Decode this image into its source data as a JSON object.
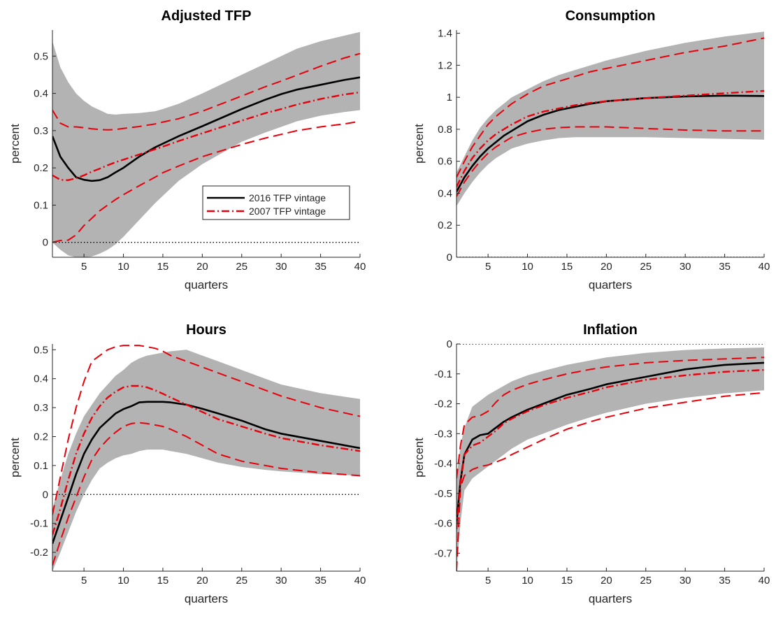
{
  "figure": {
    "legend": {
      "entries": [
        {
          "label": "2016 TFP vintage",
          "color": "#000000",
          "style": "solid"
        },
        {
          "label": "2007 TFP vintage",
          "color": "#e8000b",
          "style": "dashdot"
        }
      ]
    },
    "colors": {
      "band": "#b3b3b3",
      "median": "#000000",
      "vintage2007": "#e8000b"
    }
  },
  "chart_data": [
    {
      "type": "line",
      "title": "Adjusted TFP",
      "xlabel": "quarters",
      "ylabel": "percent",
      "xlim": [
        1,
        40
      ],
      "ylim": [
        -0.04,
        0.57
      ],
      "xticks": [
        5,
        10,
        15,
        20,
        25,
        30,
        35,
        40
      ],
      "yticks": [
        0,
        0.1,
        0.2,
        0.3,
        0.4,
        0.5
      ],
      "zero_line": true,
      "legend_position": "inside-right",
      "x": [
        1,
        2,
        3,
        4,
        5,
        6,
        7,
        8,
        9,
        10,
        12,
        14,
        15,
        17,
        20,
        25,
        28,
        30,
        32,
        35,
        38,
        40
      ],
      "band_upper": [
        0.54,
        0.47,
        0.43,
        0.4,
        0.38,
        0.365,
        0.355,
        0.345,
        0.343,
        0.345,
        0.347,
        0.352,
        0.358,
        0.372,
        0.4,
        0.45,
        0.48,
        0.5,
        0.52,
        0.54,
        0.555,
        0.565
      ],
      "band_lower": [
        0.0,
        -0.02,
        -0.035,
        -0.04,
        -0.04,
        -0.038,
        -0.03,
        -0.02,
        -0.005,
        0.015,
        0.06,
        0.105,
        0.125,
        0.165,
        0.21,
        0.27,
        0.295,
        0.31,
        0.325,
        0.34,
        0.35,
        0.355
      ],
      "series": [
        {
          "name": "2016 TFP vintage",
          "role": "median",
          "values": [
            0.285,
            0.23,
            0.2,
            0.175,
            0.168,
            0.165,
            0.167,
            0.175,
            0.188,
            0.2,
            0.23,
            0.255,
            0.265,
            0.285,
            0.312,
            0.358,
            0.383,
            0.398,
            0.41,
            0.423,
            0.436,
            0.443
          ]
        },
        {
          "name": "2007 TFP vintage",
          "role": "median",
          "values": [
            0.18,
            0.168,
            0.167,
            0.172,
            0.18,
            0.19,
            0.198,
            0.207,
            0.215,
            0.222,
            0.236,
            0.25,
            0.257,
            0.272,
            0.293,
            0.327,
            0.347,
            0.358,
            0.37,
            0.385,
            0.397,
            0.403
          ]
        },
        {
          "role": "upper",
          "values": [
            0.355,
            0.32,
            0.31,
            0.31,
            0.308,
            0.305,
            0.303,
            0.302,
            0.303,
            0.306,
            0.311,
            0.318,
            0.323,
            0.332,
            0.352,
            0.393,
            0.418,
            0.433,
            0.449,
            0.473,
            0.495,
            0.507
          ]
        },
        {
          "role": "lower",
          "values": [
            0.0,
            0.005,
            0.006,
            0.02,
            0.045,
            0.065,
            0.085,
            0.1,
            0.115,
            0.128,
            0.152,
            0.175,
            0.187,
            0.205,
            0.23,
            0.263,
            0.28,
            0.29,
            0.3,
            0.31,
            0.318,
            0.325
          ]
        }
      ]
    },
    {
      "type": "line",
      "title": "Consumption",
      "xlabel": "quarters",
      "ylabel": "percent",
      "xlim": [
        1,
        40
      ],
      "ylim": [
        0,
        1.42
      ],
      "xticks": [
        5,
        10,
        15,
        20,
        25,
        30,
        35,
        40
      ],
      "yticks": [
        0,
        0.2,
        0.4,
        0.6,
        0.8,
        1,
        1.2,
        1.4
      ],
      "zero_line": true,
      "x": [
        1,
        2,
        3,
        4,
        5,
        6,
        7,
        8,
        10,
        12,
        14,
        16,
        18,
        20,
        25,
        30,
        35,
        40
      ],
      "band_upper": [
        0.53,
        0.63,
        0.73,
        0.81,
        0.87,
        0.92,
        0.96,
        1.0,
        1.05,
        1.1,
        1.14,
        1.17,
        1.2,
        1.23,
        1.29,
        1.34,
        1.38,
        1.41
      ],
      "band_lower": [
        0.32,
        0.4,
        0.47,
        0.53,
        0.58,
        0.62,
        0.65,
        0.68,
        0.71,
        0.73,
        0.745,
        0.75,
        0.75,
        0.75,
        0.75,
        0.745,
        0.74,
        0.735
      ],
      "series": [
        {
          "name": "2016 TFP vintage",
          "role": "median",
          "values": [
            0.41,
            0.5,
            0.57,
            0.63,
            0.68,
            0.72,
            0.76,
            0.79,
            0.85,
            0.89,
            0.92,
            0.94,
            0.96,
            0.975,
            0.995,
            1.005,
            1.01,
            1.008
          ]
        },
        {
          "name": "2007 TFP vintage",
          "role": "median",
          "values": [
            0.44,
            0.54,
            0.62,
            0.68,
            0.73,
            0.77,
            0.8,
            0.83,
            0.88,
            0.91,
            0.93,
            0.95,
            0.965,
            0.975,
            0.995,
            1.01,
            1.025,
            1.04
          ]
        },
        {
          "role": "upper",
          "values": [
            0.5,
            0.6,
            0.69,
            0.76,
            0.83,
            0.88,
            0.92,
            0.96,
            1.02,
            1.07,
            1.1,
            1.13,
            1.16,
            1.18,
            1.23,
            1.28,
            1.32,
            1.37
          ]
        },
        {
          "role": "lower",
          "values": [
            0.38,
            0.47,
            0.54,
            0.6,
            0.65,
            0.69,
            0.72,
            0.75,
            0.78,
            0.8,
            0.81,
            0.815,
            0.815,
            0.815,
            0.805,
            0.795,
            0.79,
            0.79
          ]
        }
      ]
    },
    {
      "type": "line",
      "title": "Hours",
      "xlabel": "quarters",
      "ylabel": "percent",
      "xlim": [
        1,
        40
      ],
      "ylim": [
        -0.265,
        0.52
      ],
      "xticks": [
        5,
        10,
        15,
        20,
        25,
        30,
        35,
        40
      ],
      "yticks": [
        -0.2,
        -0.1,
        0,
        0.1,
        0.2,
        0.3,
        0.4,
        0.5
      ],
      "zero_line": true,
      "x": [
        1,
        2,
        3,
        4,
        5,
        6,
        7,
        8,
        9,
        10,
        11,
        12,
        13,
        14,
        15,
        16,
        18,
        20,
        22,
        25,
        28,
        30,
        35,
        40
      ],
      "band_upper": [
        -0.05,
        0.05,
        0.14,
        0.21,
        0.27,
        0.31,
        0.35,
        0.38,
        0.41,
        0.43,
        0.455,
        0.47,
        0.48,
        0.485,
        0.49,
        0.495,
        0.5,
        0.48,
        0.46,
        0.43,
        0.4,
        0.38,
        0.35,
        0.33
      ],
      "band_lower": [
        -0.265,
        -0.2,
        -0.13,
        -0.06,
        0.0,
        0.05,
        0.09,
        0.11,
        0.125,
        0.135,
        0.14,
        0.15,
        0.155,
        0.155,
        0.155,
        0.15,
        0.14,
        0.125,
        0.11,
        0.095,
        0.085,
        0.08,
        0.07,
        0.065
      ],
      "series": [
        {
          "name": "2016 TFP vintage",
          "role": "median",
          "values": [
            -0.17,
            -0.09,
            -0.01,
            0.07,
            0.14,
            0.19,
            0.23,
            0.255,
            0.28,
            0.295,
            0.305,
            0.318,
            0.32,
            0.32,
            0.32,
            0.318,
            0.31,
            0.296,
            0.28,
            0.255,
            0.225,
            0.21,
            0.185,
            0.16
          ]
        },
        {
          "name": "2007 TFP vintage",
          "role": "median",
          "values": [
            -0.14,
            -0.05,
            0.05,
            0.14,
            0.21,
            0.265,
            0.305,
            0.335,
            0.355,
            0.37,
            0.375,
            0.375,
            0.37,
            0.36,
            0.348,
            0.335,
            0.31,
            0.285,
            0.26,
            0.235,
            0.21,
            0.195,
            0.17,
            0.15
          ]
        },
        {
          "role": "upper",
          "values": [
            -0.07,
            0.06,
            0.19,
            0.3,
            0.39,
            0.46,
            0.48,
            0.5,
            0.51,
            0.515,
            0.515,
            0.515,
            0.51,
            0.505,
            0.495,
            0.48,
            0.46,
            0.44,
            0.42,
            0.39,
            0.36,
            0.34,
            0.3,
            0.27
          ]
        },
        {
          "role": "lower",
          "values": [
            -0.245,
            -0.16,
            -0.08,
            -0.01,
            0.06,
            0.12,
            0.16,
            0.19,
            0.215,
            0.235,
            0.245,
            0.248,
            0.245,
            0.24,
            0.235,
            0.225,
            0.2,
            0.17,
            0.14,
            0.115,
            0.1,
            0.09,
            0.075,
            0.065
          ]
        }
      ]
    },
    {
      "type": "line",
      "title": "Inflation",
      "xlabel": "quarters",
      "ylabel": "percent",
      "xlim": [
        1,
        40
      ],
      "ylim": [
        -0.76,
        0.0
      ],
      "xticks": [
        5,
        10,
        15,
        20,
        25,
        30,
        35,
        40
      ],
      "yticks": [
        -0.7,
        -0.6,
        -0.5,
        -0.4,
        -0.3,
        -0.2,
        -0.1,
        0
      ],
      "zero_line": true,
      "x": [
        1,
        1.5,
        2,
        3,
        4,
        5,
        6,
        7,
        8,
        10,
        12,
        15,
        18,
        20,
        25,
        30,
        35,
        40
      ],
      "band_upper": [
        -0.45,
        -0.34,
        -0.28,
        -0.21,
        -0.19,
        -0.17,
        -0.155,
        -0.14,
        -0.125,
        -0.105,
        -0.09,
        -0.07,
        -0.055,
        -0.045,
        -0.03,
        -0.02,
        -0.015,
        -0.012
      ],
      "band_lower": [
        -0.76,
        -0.6,
        -0.49,
        -0.45,
        -0.43,
        -0.41,
        -0.39,
        -0.37,
        -0.35,
        -0.32,
        -0.3,
        -0.27,
        -0.245,
        -0.23,
        -0.2,
        -0.18,
        -0.165,
        -0.155
      ],
      "series": [
        {
          "name": "2016 TFP vintage",
          "role": "median",
          "values": [
            -0.6,
            -0.46,
            -0.37,
            -0.32,
            -0.305,
            -0.3,
            -0.28,
            -0.26,
            -0.245,
            -0.22,
            -0.2,
            -0.17,
            -0.15,
            -0.135,
            -0.11,
            -0.085,
            -0.07,
            -0.063
          ]
        },
        {
          "name": "2007 TFP vintage",
          "role": "median",
          "values": [
            -0.62,
            -0.47,
            -0.37,
            -0.34,
            -0.33,
            -0.31,
            -0.29,
            -0.265,
            -0.25,
            -0.225,
            -0.205,
            -0.18,
            -0.16,
            -0.145,
            -0.12,
            -0.105,
            -0.093,
            -0.087
          ]
        },
        {
          "role": "upper",
          "values": [
            -0.45,
            -0.34,
            -0.27,
            -0.245,
            -0.24,
            -0.225,
            -0.195,
            -0.17,
            -0.155,
            -0.135,
            -0.12,
            -0.1,
            -0.085,
            -0.077,
            -0.063,
            -0.055,
            -0.05,
            -0.045
          ]
        },
        {
          "role": "lower",
          "values": [
            -0.76,
            -0.48,
            -0.44,
            -0.42,
            -0.41,
            -0.405,
            -0.395,
            -0.385,
            -0.37,
            -0.345,
            -0.32,
            -0.285,
            -0.26,
            -0.245,
            -0.215,
            -0.195,
            -0.175,
            -0.163
          ]
        }
      ]
    }
  ]
}
